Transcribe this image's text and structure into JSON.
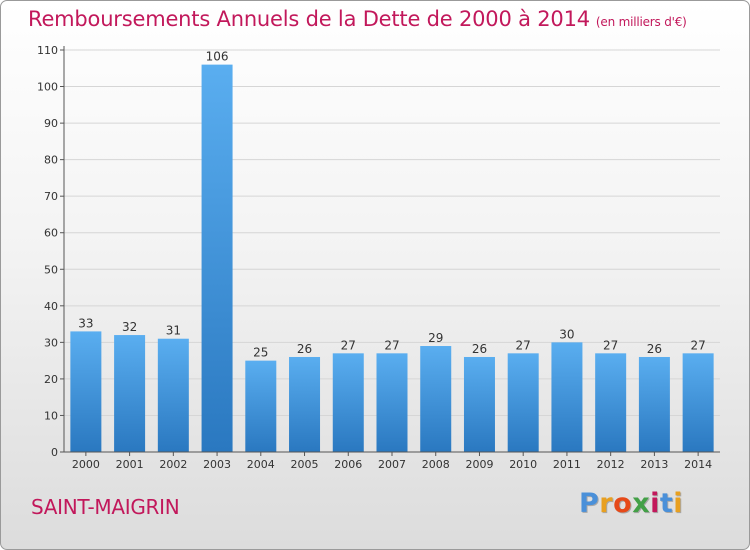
{
  "header": {
    "title": "Remboursements Annuels de la Dette de 2000 à 2014",
    "unit": "(en milliers d'€)"
  },
  "footer": {
    "commune": "SAINT-MAIGRIN",
    "logo": {
      "text": "Proxiti",
      "letter_colors": [
        "#4a90d9",
        "#e8a020",
        "#e64a19",
        "#43a047",
        "#c2185b",
        "#4a90d9",
        "#e8a020"
      ]
    }
  },
  "chart_data": {
    "type": "bar",
    "title": "Remboursements Annuels de la Dette de 2000 à 2014",
    "subtitle": "(en milliers d'€)",
    "xlabel": "",
    "ylabel": "",
    "categories": [
      "2000",
      "2001",
      "2002",
      "2003",
      "2004",
      "2005",
      "2006",
      "2007",
      "2008",
      "2009",
      "2010",
      "2011",
      "2012",
      "2013",
      "2014"
    ],
    "values": [
      33,
      32,
      31,
      106,
      25,
      26,
      27,
      27,
      29,
      26,
      27,
      30,
      27,
      26,
      27
    ],
    "ylim": [
      0,
      110
    ],
    "yticks": [
      0,
      10,
      20,
      30,
      40,
      50,
      60,
      70,
      80,
      90,
      100,
      110
    ],
    "grid": true,
    "bar_color": "#3d8fd6",
    "data_labels": true
  }
}
